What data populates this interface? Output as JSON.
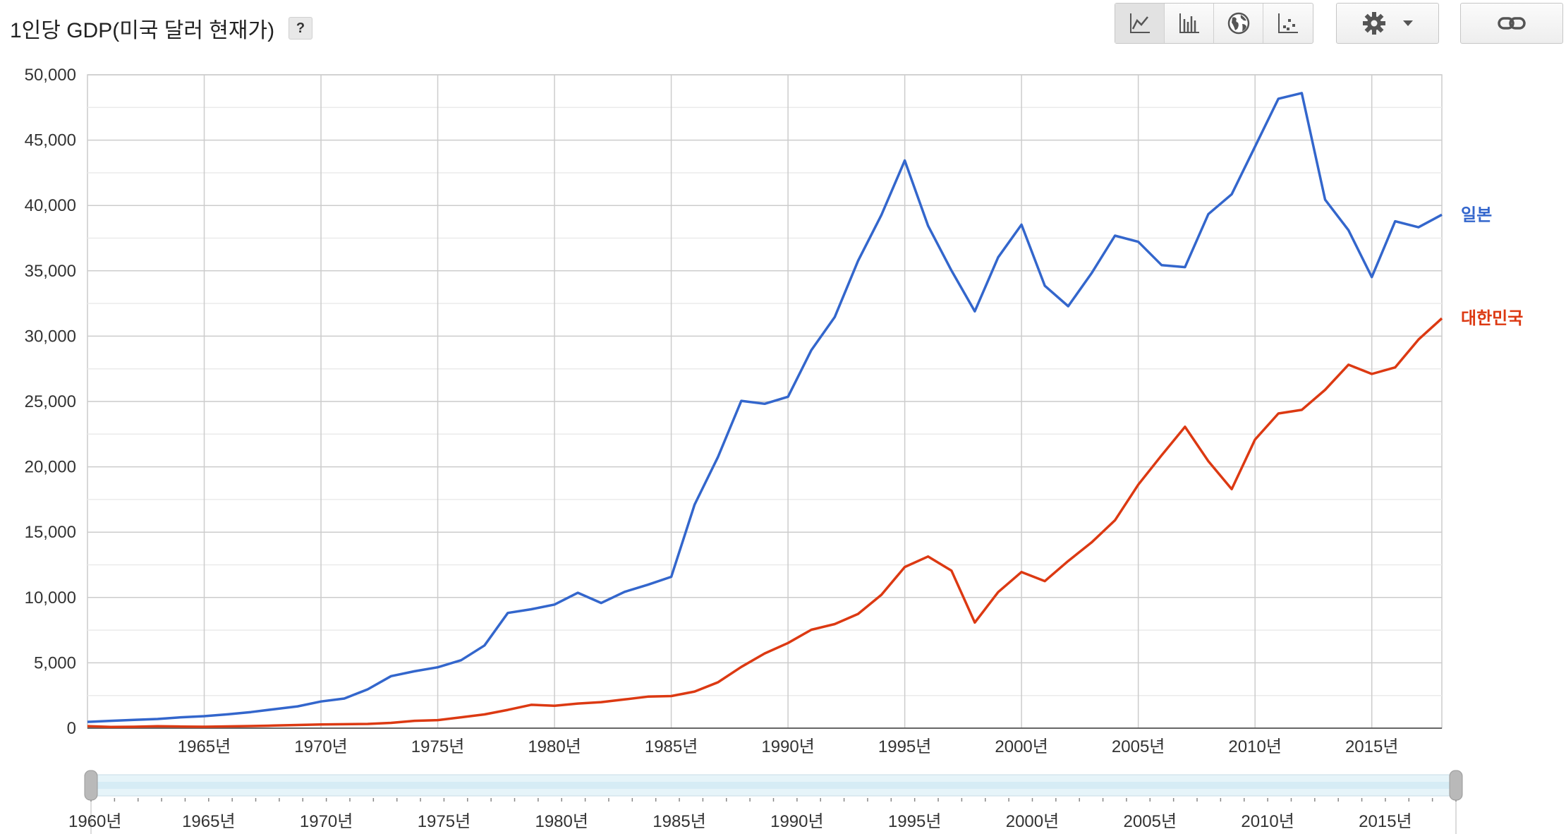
{
  "header": {
    "title": "1인당 GDP(미국 달러 현재가)",
    "help_label": "?"
  },
  "toolbar": {
    "view_buttons": [
      {
        "icon": "line-chart-icon",
        "active": true
      },
      {
        "icon": "bar-chart-icon",
        "active": false
      },
      {
        "icon": "globe-map-icon",
        "active": false
      },
      {
        "icon": "scatter-plot-icon",
        "active": false
      }
    ],
    "settings_icon": "gear-icon",
    "dropdown_icon": "caret-down-icon",
    "link_icon": "link-icon"
  },
  "chart_data": {
    "type": "line",
    "title": "1인당 GDP(미국 달러 현재가)",
    "xlabel": "",
    "ylabel": "",
    "xlim": [
      1960,
      2018
    ],
    "ylim": [
      0,
      50000
    ],
    "y_ticks": [
      0,
      5000,
      10000,
      15000,
      20000,
      25000,
      30000,
      35000,
      40000,
      45000,
      50000
    ],
    "y_tick_labels": [
      "0",
      "5,000",
      "10,000",
      "15,000",
      "20,000",
      "25,000",
      "30,000",
      "35,000",
      "40,000",
      "45,000",
      "50,000"
    ],
    "x_ticks": [
      1965,
      1970,
      1975,
      1980,
      1985,
      1990,
      1995,
      2000,
      2005,
      2010,
      2015
    ],
    "x_tick_labels": [
      "1965년",
      "1970년",
      "1975년",
      "1980년",
      "1985년",
      "1990년",
      "1995년",
      "2000년",
      "2005년",
      "2010년",
      "2015년"
    ],
    "grid": true,
    "legend": "series labels at right end of lines",
    "x": [
      1960,
      1961,
      1962,
      1963,
      1964,
      1965,
      1966,
      1967,
      1968,
      1969,
      1970,
      1971,
      1972,
      1973,
      1974,
      1975,
      1976,
      1977,
      1978,
      1979,
      1980,
      1981,
      1982,
      1983,
      1984,
      1985,
      1986,
      1987,
      1988,
      1989,
      1990,
      1991,
      1992,
      1993,
      1994,
      1995,
      1996,
      1997,
      1998,
      1999,
      2000,
      2001,
      2002,
      2003,
      2004,
      2005,
      2006,
      2007,
      2008,
      2009,
      2010,
      2011,
      2012,
      2013,
      2014,
      2015,
      2016,
      2017,
      2018
    ],
    "series": [
      {
        "name": "일본",
        "color": "#3366cc",
        "values": [
          480,
          560,
          630,
          700,
          830,
          920,
          1060,
          1230,
          1450,
          1670,
          2040,
          2270,
          2970,
          3980,
          4350,
          4660,
          5200,
          6330,
          8820,
          9100,
          9460,
          10360,
          9580,
          10430,
          10980,
          11580,
          17110,
          20750,
          25050,
          24820,
          25360,
          28930,
          31460,
          35760,
          39270,
          43440,
          38440,
          35020,
          31900,
          36030,
          38530,
          33850,
          32290,
          34810,
          37690,
          37220,
          35430,
          35280,
          39340,
          40860,
          44510,
          48170,
          48600,
          40450,
          38110,
          34520,
          38790,
          38330,
          39290
        ]
      },
      {
        "name": "대한민국",
        "color": "#dc3912",
        "values": [
          158,
          94,
          106,
          146,
          123,
          109,
          133,
          161,
          198,
          243,
          279,
          302,
          324,
          406,
          563,
          615,
          830,
          1052,
          1401,
          1785,
          1715,
          1883,
          1993,
          2199,
          2413,
          2458,
          2803,
          3510,
          4686,
          5717,
          6517,
          7531,
          7964,
          8741,
          10206,
          12333,
          13138,
          12059,
          8085,
          10409,
          11948,
          11253,
          12789,
          14209,
          15908,
          18640,
          20888,
          23061,
          20431,
          18292,
          22087,
          24080,
          24359,
          25890,
          27811,
          27105,
          27608,
          29743,
          31363
        ]
      }
    ]
  },
  "navigator": {
    "start_label": "1960년",
    "tick_labels": [
      "1965년",
      "1970년",
      "1975년",
      "1980년",
      "1985년",
      "1990년",
      "1995년",
      "2000년",
      "2005년",
      "2010년",
      "2015년"
    ]
  }
}
